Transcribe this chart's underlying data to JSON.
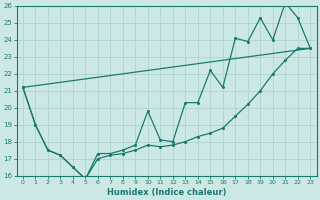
{
  "xlabel": "Humidex (Indice chaleur)",
  "xlim": [
    -0.5,
    23.5
  ],
  "ylim": [
    16,
    26
  ],
  "xticks": [
    0,
    1,
    2,
    3,
    4,
    5,
    6,
    7,
    8,
    9,
    10,
    11,
    12,
    13,
    14,
    15,
    16,
    17,
    18,
    19,
    20,
    21,
    22,
    23
  ],
  "yticks": [
    16,
    17,
    18,
    19,
    20,
    21,
    22,
    23,
    24,
    25,
    26
  ],
  "line_color": "#1a7a6e",
  "bg_color": "#cce8e4",
  "grid_color": "#aacfca",
  "line1_x": [
    0,
    1,
    2,
    3,
    4,
    5,
    6,
    7,
    8,
    9,
    10,
    11,
    12,
    13,
    14,
    15,
    16,
    17,
    18,
    19,
    20,
    21,
    22,
    23
  ],
  "line1_y": [
    21.2,
    19.0,
    17.5,
    17.2,
    16.5,
    15.8,
    17.0,
    17.2,
    17.3,
    17.5,
    17.8,
    17.7,
    17.8,
    18.0,
    18.3,
    18.5,
    18.8,
    19.5,
    20.2,
    21.0,
    22.0,
    22.8,
    23.5,
    23.5
  ],
  "line2_x": [
    0,
    1,
    2,
    3,
    4,
    5,
    6,
    7,
    8,
    9,
    10,
    11,
    12,
    13,
    14,
    15,
    16,
    17,
    18,
    19,
    20,
    21,
    22,
    23
  ],
  "line2_y": [
    21.2,
    19.0,
    17.5,
    17.2,
    16.5,
    15.8,
    17.3,
    17.3,
    17.5,
    17.8,
    19.8,
    18.1,
    18.0,
    20.3,
    20.3,
    22.2,
    21.2,
    24.1,
    23.9,
    25.3,
    24.0,
    26.2,
    25.3,
    23.5
  ],
  "line3_x": [
    0,
    23
  ],
  "line3_y": [
    21.2,
    23.5
  ]
}
